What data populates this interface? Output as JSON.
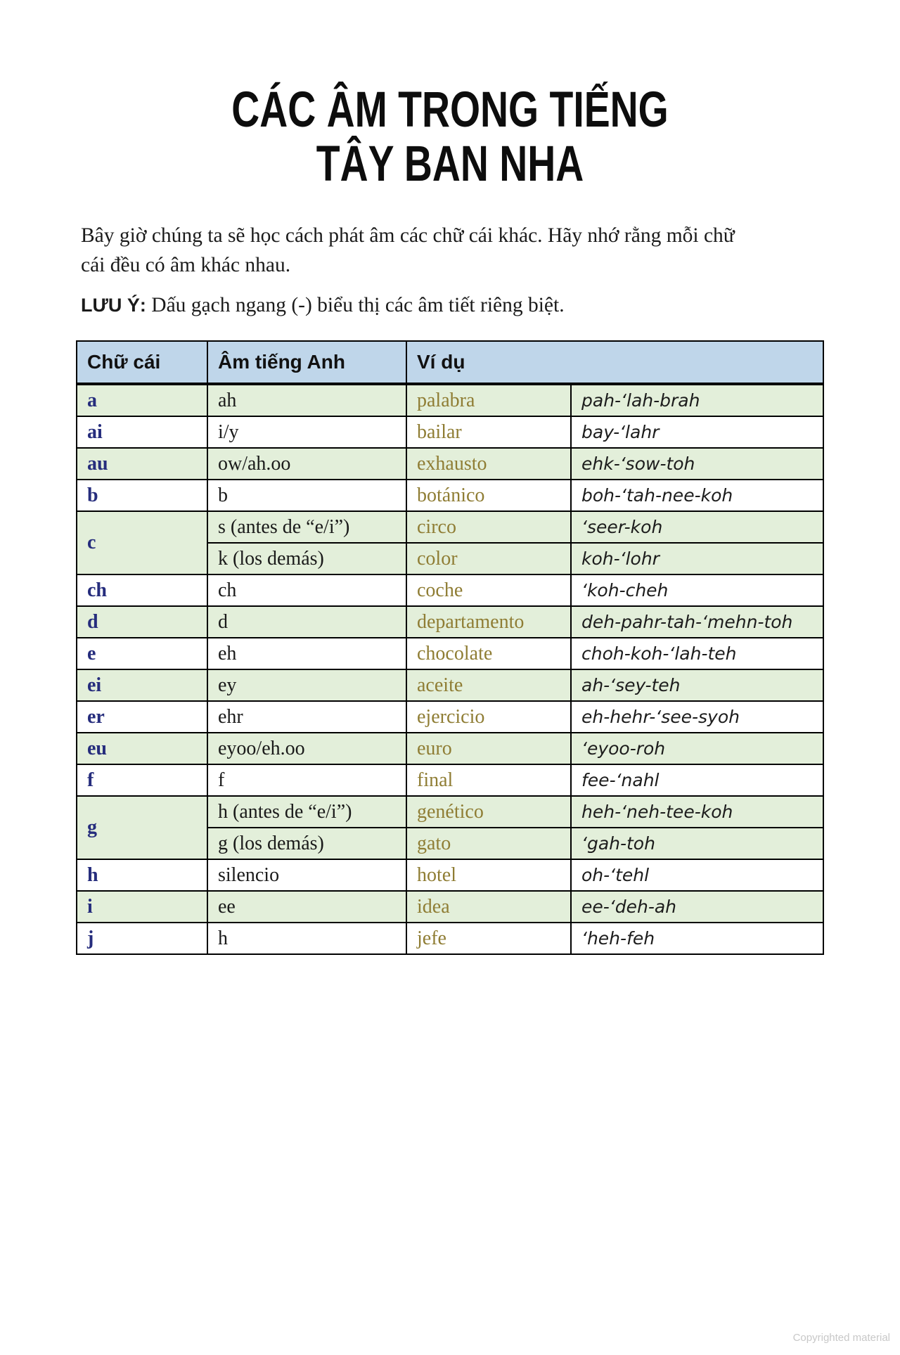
{
  "page": {
    "title": {
      "line1": "CÁC ÂM TRONG TIẾNG",
      "line2": "TÂY BAN NHA"
    },
    "intro": {
      "line1": "Bây giờ chúng ta sẽ học cách phát âm các chữ cái khác. Hãy nhớ rằng mỗi chữ",
      "line2": "cái đều có âm khác nhau."
    },
    "note": {
      "label": "LƯU Ý:",
      "text": " Dấu gạch ngang (-) biểu thị các âm tiết riêng biệt."
    },
    "footer": "Copyrighted material"
  },
  "colors": {
    "header_bg": "#bfd6ea",
    "row_green_bg": "#e3efda",
    "row_white_bg": "#ffffff",
    "letter_color": "#262d7d",
    "spanish_word_color": "#8f7d34",
    "border_color": "#000000"
  },
  "table": {
    "headers": {
      "letter": "Chữ cái",
      "english_sound": "Âm tiếng Anh",
      "example": "Ví dụ"
    },
    "groups": [
      {
        "letter": "a",
        "shade": "green",
        "rows": [
          {
            "sound": "ah",
            "word": "palabra",
            "pron": "pah-‘lah-brah"
          }
        ]
      },
      {
        "letter": "ai",
        "shade": "white",
        "rows": [
          {
            "sound": "i/y",
            "word": "bailar",
            "pron": "bay-‘lahr"
          }
        ]
      },
      {
        "letter": "au",
        "shade": "green",
        "rows": [
          {
            "sound": "ow/ah.oo",
            "word": "exhausto",
            "pron": "ehk-‘sow-toh"
          }
        ]
      },
      {
        "letter": "b",
        "shade": "white",
        "rows": [
          {
            "sound": "b",
            "word": "botánico",
            "pron": "boh-‘tah-nee-koh"
          }
        ]
      },
      {
        "letter": "c",
        "shade": "green",
        "rows": [
          {
            "sound": "s (antes de “e/i”)",
            "word": "circo",
            "pron": "‘seer-koh"
          },
          {
            "sound": "k (los demás)",
            "word": "color",
            "pron": "koh-‘lohr"
          }
        ]
      },
      {
        "letter": "ch",
        "shade": "white",
        "rows": [
          {
            "sound": "ch",
            "word": "coche",
            "pron": "‘koh-cheh"
          }
        ]
      },
      {
        "letter": "d",
        "shade": "green",
        "rows": [
          {
            "sound": "d",
            "word": "departamento",
            "pron": "deh-pahr-tah-‘mehn-toh"
          }
        ]
      },
      {
        "letter": "e",
        "shade": "white",
        "rows": [
          {
            "sound": "eh",
            "word": "chocolate",
            "pron": "choh-koh-‘lah-teh"
          }
        ]
      },
      {
        "letter": "ei",
        "shade": "green",
        "rows": [
          {
            "sound": "ey",
            "word": "aceite",
            "pron": "ah-‘sey-teh"
          }
        ]
      },
      {
        "letter": "er",
        "shade": "white",
        "rows": [
          {
            "sound": "ehr",
            "word": "ejercicio",
            "pron": "eh-hehr-‘see-syoh"
          }
        ]
      },
      {
        "letter": "eu",
        "shade": "green",
        "rows": [
          {
            "sound": "eyoo/eh.oo",
            "word": "euro",
            "pron": "‘eyoo-roh"
          }
        ]
      },
      {
        "letter": "f",
        "shade": "white",
        "rows": [
          {
            "sound": "f",
            "word": "final",
            "pron": "fee-‘nahl"
          }
        ]
      },
      {
        "letter": "g",
        "shade": "green",
        "rows": [
          {
            "sound": "h (antes de “e/i”)",
            "word": "genético",
            "pron": "heh-‘neh-tee-koh"
          },
          {
            "sound": "g (los demás)",
            "word": "gato",
            "pron": "‘gah-toh"
          }
        ]
      },
      {
        "letter": "h",
        "shade": "white",
        "rows": [
          {
            "sound": "silencio",
            "word": "hotel",
            "pron": "oh-‘tehl"
          }
        ]
      },
      {
        "letter": "i",
        "shade": "green",
        "rows": [
          {
            "sound": "ee",
            "word": "idea",
            "pron": "ee-‘deh-ah"
          }
        ]
      },
      {
        "letter": "j",
        "shade": "white",
        "rows": [
          {
            "sound": "h",
            "word": "jefe",
            "pron": "‘heh-feh"
          }
        ]
      }
    ]
  }
}
